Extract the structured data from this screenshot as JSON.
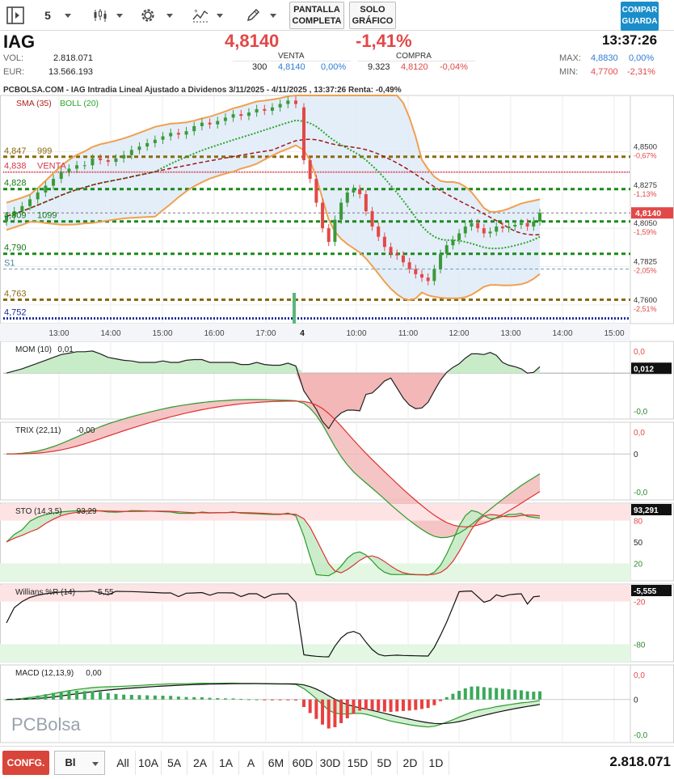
{
  "toolbar": {
    "interval": "5",
    "fullscreen_line1": "PANTALLA",
    "fullscreen_line2": "COMPLETA",
    "chartonly_line1": "SOLO",
    "chartonly_line2": "GRÁFICO",
    "save_line1": "COMPAR",
    "save_line2": "GUARDA",
    "icons": [
      "sidebar-toggle-icon",
      "candles-icon",
      "gear-icon",
      "indicators-icon",
      "pencil-icon"
    ]
  },
  "quote": {
    "ticker": "IAG",
    "vol_label": "VOL:",
    "vol_value": "2.818.071",
    "eur_label": "EUR:",
    "eur_value": "13.566.193",
    "price": "4,8140",
    "change": "-1,41%",
    "time": "13:37:26",
    "venta_label": "VENTA",
    "venta_qty": "300",
    "venta_price": "4,8140",
    "venta_pct": "0,00%",
    "compra_label": "COMPRA",
    "compra_qty": "9.323",
    "compra_price": "4,8120",
    "compra_pct": "-0,04%",
    "max_label": "MAX:",
    "max_value": "4,8830",
    "max_pct": "0,00%",
    "min_label": "MIN:",
    "min_value": "4,7700",
    "min_pct": "-2,31%"
  },
  "colors": {
    "up": "#3a9a3a",
    "down": "#e24848",
    "bollinger": "#f0a050",
    "sma": "#a01818",
    "accent": "#1b8ec9",
    "level_brown": "#8a6a10",
    "level_green": "#1a8a1a"
  },
  "chart_data": {
    "title": "PCBOLSA.COM - IAG Intradia Lineal Ajustado a Dividenos 3/11/2025 - 4/11/2025 , 13:37:26 Renta: -0,49%",
    "type": "candlestick",
    "legend": [
      "SMA (35)",
      "BOLL (20)"
    ],
    "x_ticks": [
      "13:00",
      "14:00",
      "15:00",
      "16:00",
      "17:00",
      "4",
      "10:00",
      "11:00",
      "12:00",
      "13:00",
      "14:00",
      "15:00"
    ],
    "y_ticks": [
      {
        "value": "4,8500",
        "pct": "-0,67%"
      },
      {
        "value": "4,8275",
        "pct": "-1,13%"
      },
      {
        "value": "4,8050",
        "pct": "-1,59%"
      },
      {
        "value": "4,7825",
        "pct": "-2,05%"
      },
      {
        "value": "4,7600",
        "pct": "-2,51%"
      }
    ],
    "ylim": [
      4.749,
      4.883
    ],
    "last_price_tag": "4,8140",
    "last_price": 4.814,
    "levels": [
      {
        "label": "4,847",
        "extra": "999",
        "value": 4.847,
        "kind": "resistance"
      },
      {
        "label": "4,838",
        "extra": "VENTA",
        "value": 4.838,
        "kind": "sell"
      },
      {
        "label": "4,828",
        "extra": "",
        "value": 4.828,
        "kind": "support"
      },
      {
        "label": "4,809",
        "extra": "1099",
        "value": 4.809,
        "kind": "support"
      },
      {
        "label": "4,790",
        "extra": "",
        "value": 4.79,
        "kind": "support"
      },
      {
        "label": "S1",
        "extra": "",
        "value": 4.781,
        "kind": "pivot"
      },
      {
        "label": "4,763",
        "extra": "",
        "value": 4.763,
        "kind": "resistance"
      },
      {
        "label": "4,752",
        "extra": "",
        "value": 4.752,
        "kind": "blue"
      }
    ],
    "session_day1_close": [
      4.812,
      4.815,
      4.818,
      4.822,
      4.826,
      4.83,
      4.834,
      4.838,
      4.84,
      4.842,
      4.842,
      4.846,
      4.845,
      4.844,
      4.846,
      4.848,
      4.851,
      4.853,
      4.855,
      4.857,
      4.859,
      4.861,
      4.86,
      4.862,
      4.865,
      4.867,
      4.866,
      4.868,
      4.87,
      4.872,
      4.871,
      4.873,
      4.875,
      4.874,
      4.876,
      4.878,
      4.88,
      4.878
    ],
    "session_day2_close": [
      4.845,
      4.834,
      4.82,
      4.805,
      4.797,
      4.81,
      4.82,
      4.826,
      4.828,
      4.825,
      4.815,
      4.806,
      4.8,
      4.794,
      4.79,
      4.789,
      4.785,
      4.781,
      4.778,
      4.776,
      4.774,
      4.781,
      4.79,
      4.795,
      4.798,
      4.802,
      4.806,
      4.808,
      4.805,
      4.802,
      4.803,
      4.806,
      4.805,
      4.806,
      4.807,
      4.808,
      4.806,
      4.809,
      4.814
    ],
    "indicators": [
      {
        "name": "MOM (10)",
        "value": "0,01",
        "tag": "0,012",
        "ticks": [
          "0,0",
          "-0,0"
        ]
      },
      {
        "name": "TRIX (22,11)",
        "value": "-0,00",
        "ticks": [
          "0,0",
          "0",
          "-0,0"
        ]
      },
      {
        "name": "STO (14,3,5)",
        "value": "93,29",
        "tag": "93,291",
        "ticks": [
          "80",
          "50",
          "20"
        ]
      },
      {
        "name": "Willians %R (14)",
        "value": "-5,55",
        "tag": "-5,555",
        "ticks": [
          "-20",
          "-80"
        ]
      },
      {
        "name": "MACD (12,13,9)",
        "value": "0,00",
        "ticks": [
          "0,0",
          "0",
          "-0,0"
        ]
      }
    ],
    "watermark": "PCBolsa"
  },
  "bottom": {
    "config_label": "CONFG.",
    "mode": "Bl",
    "ranges": [
      "All",
      "10A",
      "5A",
      "2A",
      "1A",
      "A",
      "6M",
      "60D",
      "30D",
      "15D",
      "5D",
      "2D",
      "1D"
    ],
    "volume": "2.818.071"
  }
}
